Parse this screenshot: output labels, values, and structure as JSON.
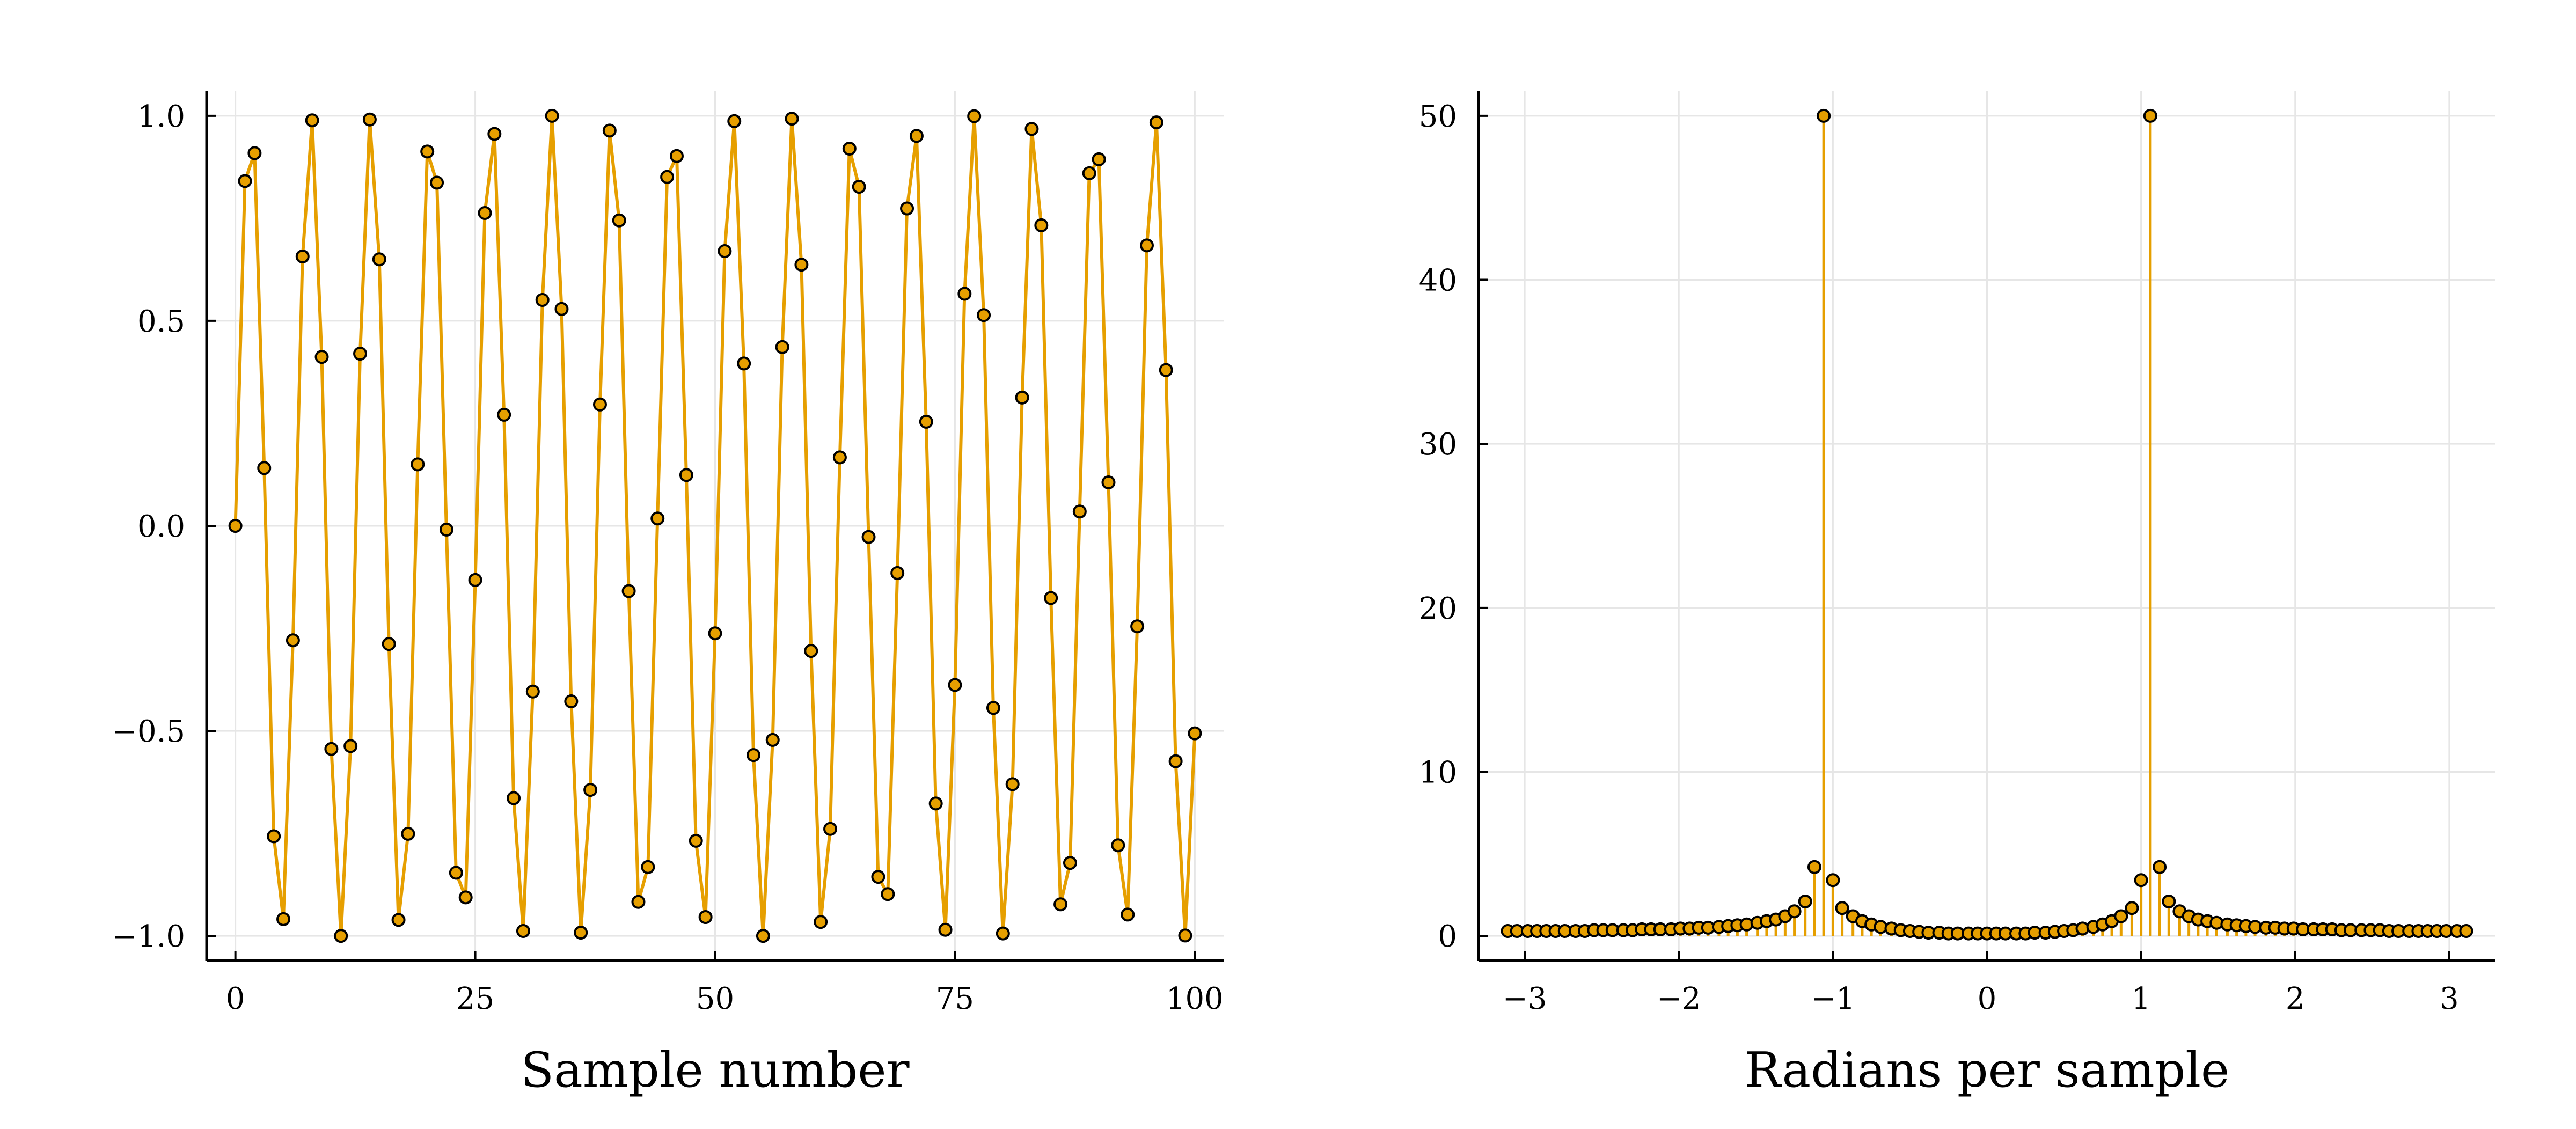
{
  "chart_data": [
    {
      "type": "line",
      "title": "",
      "xlabel": "Sample number",
      "ylabel": "",
      "xlim": [
        -3,
        103
      ],
      "ylim": [
        -1.06,
        1.06
      ],
      "xticks": [
        0,
        25,
        50,
        75,
        100
      ],
      "xtick_labels": [
        "0",
        "25",
        "50",
        "75",
        "100"
      ],
      "yticks": [
        -1.0,
        -0.5,
        0.0,
        0.5,
        1.0
      ],
      "ytick_labels": [
        "−1.0",
        "−0.5",
        "0.0",
        "0.5",
        "1.0"
      ],
      "grid": true,
      "legend": "none",
      "series": [
        {
          "style": "line with circle markers",
          "color": "#e69f00",
          "x": [
            0,
            1,
            2,
            3,
            4,
            5,
            6,
            7,
            8,
            9,
            10,
            11,
            12,
            13,
            14,
            15,
            16,
            17,
            18,
            19,
            20,
            21,
            22,
            23,
            24,
            25,
            26,
            27,
            28,
            29,
            30,
            31,
            32,
            33,
            34,
            35,
            36,
            37,
            38,
            39,
            40,
            41,
            42,
            43,
            44,
            45,
            46,
            47,
            48,
            49,
            50,
            51,
            52,
            53,
            54,
            55,
            56,
            57,
            58,
            59,
            60,
            61,
            62,
            63,
            64,
            65,
            66,
            67,
            68,
            69,
            70,
            71,
            72,
            73,
            74,
            75,
            76,
            77,
            78,
            79,
            80,
            81,
            82,
            83,
            84,
            85,
            86,
            87,
            88,
            89,
            90,
            91,
            92,
            93,
            94,
            95,
            96,
            97,
            98,
            99,
            100
          ],
          "values": [
            0.0,
            0.841,
            0.909,
            0.141,
            -0.757,
            -0.959,
            -0.279,
            0.657,
            0.989,
            0.412,
            -0.544,
            -1.0,
            -0.537,
            0.42,
            0.991,
            0.65,
            -0.288,
            -0.961,
            -0.751,
            0.15,
            0.913,
            0.837,
            -0.009,
            -0.846,
            -0.906,
            -0.132,
            0.763,
            0.956,
            0.271,
            -0.664,
            -0.988,
            -0.404,
            0.551,
            1.0,
            0.529,
            -0.428,
            -0.992,
            -0.644,
            0.296,
            0.964,
            0.745,
            -0.159,
            -0.917,
            -0.832,
            0.018,
            0.851,
            0.902,
            0.124,
            -0.768,
            -0.954,
            -0.262,
            0.67,
            0.987,
            0.396,
            -0.559,
            -1.0,
            -0.522,
            0.436,
            0.993,
            0.637,
            -0.305,
            -0.966,
            -0.739,
            0.167,
            0.92,
            0.827,
            -0.027,
            -0.856,
            -0.898,
            -0.115,
            0.774,
            0.951,
            0.254,
            -0.677,
            -0.985,
            -0.388,
            0.566,
            0.999,
            0.514,
            -0.444,
            -0.994,
            -0.63,
            0.313,
            0.968,
            0.733,
            -0.176,
            -0.923,
            -0.822,
            0.035,
            0.86,
            0.894,
            0.106,
            -0.779,
            -0.948,
            -0.245,
            0.684,
            0.984,
            0.38,
            -0.574,
            -0.999,
            -0.506
          ]
        }
      ]
    },
    {
      "type": "stem",
      "title": "",
      "xlabel": "Radians per sample",
      "ylabel": "",
      "xlim": [
        -3.3,
        3.3
      ],
      "ylim": [
        -1.5,
        51.5
      ],
      "xticks": [
        -3,
        -2,
        -1,
        0,
        1,
        2,
        3
      ],
      "xtick_labels": [
        "−3",
        "−2",
        "−1",
        "0",
        "1",
        "2",
        "3"
      ],
      "yticks": [
        0,
        10,
        20,
        30,
        40,
        50
      ],
      "ytick_labels": [
        "0",
        "10",
        "20",
        "30",
        "40",
        "50"
      ],
      "grid": true,
      "legend": "none",
      "series": [
        {
          "style": "stem with circle markers",
          "color": "#e69f00",
          "x": [
            -3.11,
            -3.05,
            -2.98,
            -2.92,
            -2.86,
            -2.8,
            -2.74,
            -2.67,
            -2.61,
            -2.55,
            -2.49,
            -2.43,
            -2.36,
            -2.3,
            -2.24,
            -2.18,
            -2.12,
            -2.05,
            -1.99,
            -1.93,
            -1.87,
            -1.81,
            -1.74,
            -1.68,
            -1.62,
            -1.56,
            -1.49,
            -1.43,
            -1.37,
            -1.31,
            -1.25,
            -1.18,
            -1.12,
            -1.06,
            -1.0,
            -0.94,
            -0.87,
            -0.81,
            -0.75,
            -0.69,
            -0.62,
            -0.56,
            -0.5,
            -0.44,
            -0.38,
            -0.31,
            -0.25,
            -0.19,
            -0.12,
            -0.06,
            0.0,
            0.06,
            0.12,
            0.19,
            0.25,
            0.31,
            0.38,
            0.44,
            0.5,
            0.56,
            0.62,
            0.69,
            0.75,
            0.81,
            0.87,
            0.94,
            1.0,
            1.06,
            1.12,
            1.18,
            1.25,
            1.31,
            1.37,
            1.43,
            1.49,
            1.56,
            1.62,
            1.68,
            1.74,
            1.81,
            1.87,
            1.93,
            1.99,
            2.05,
            2.12,
            2.18,
            2.24,
            2.3,
            2.36,
            2.43,
            2.49,
            2.55,
            2.61,
            2.67,
            2.74,
            2.8,
            2.86,
            2.92,
            2.98,
            3.05,
            3.11
          ],
          "values": [
            0.3,
            0.3,
            0.3,
            0.3,
            0.3,
            0.3,
            0.3,
            0.3,
            0.3,
            0.35,
            0.35,
            0.35,
            0.35,
            0.35,
            0.4,
            0.4,
            0.4,
            0.4,
            0.45,
            0.45,
            0.5,
            0.5,
            0.55,
            0.6,
            0.65,
            0.7,
            0.8,
            0.9,
            1.0,
            1.2,
            1.5,
            2.1,
            4.2,
            50.0,
            3.4,
            1.7,
            1.2,
            0.9,
            0.7,
            0.55,
            0.45,
            0.35,
            0.3,
            0.25,
            0.2,
            0.2,
            0.15,
            0.15,
            0.15,
            0.15,
            0.15,
            0.15,
            0.15,
            0.15,
            0.15,
            0.2,
            0.2,
            0.25,
            0.3,
            0.35,
            0.45,
            0.55,
            0.7,
            0.9,
            1.2,
            1.7,
            3.4,
            50.0,
            4.2,
            2.1,
            1.5,
            1.2,
            1.0,
            0.9,
            0.8,
            0.7,
            0.65,
            0.6,
            0.55,
            0.5,
            0.5,
            0.45,
            0.45,
            0.4,
            0.4,
            0.4,
            0.4,
            0.35,
            0.35,
            0.35,
            0.35,
            0.35,
            0.3,
            0.3,
            0.3,
            0.3,
            0.3,
            0.3,
            0.3,
            0.3,
            0.3
          ]
        }
      ]
    }
  ]
}
